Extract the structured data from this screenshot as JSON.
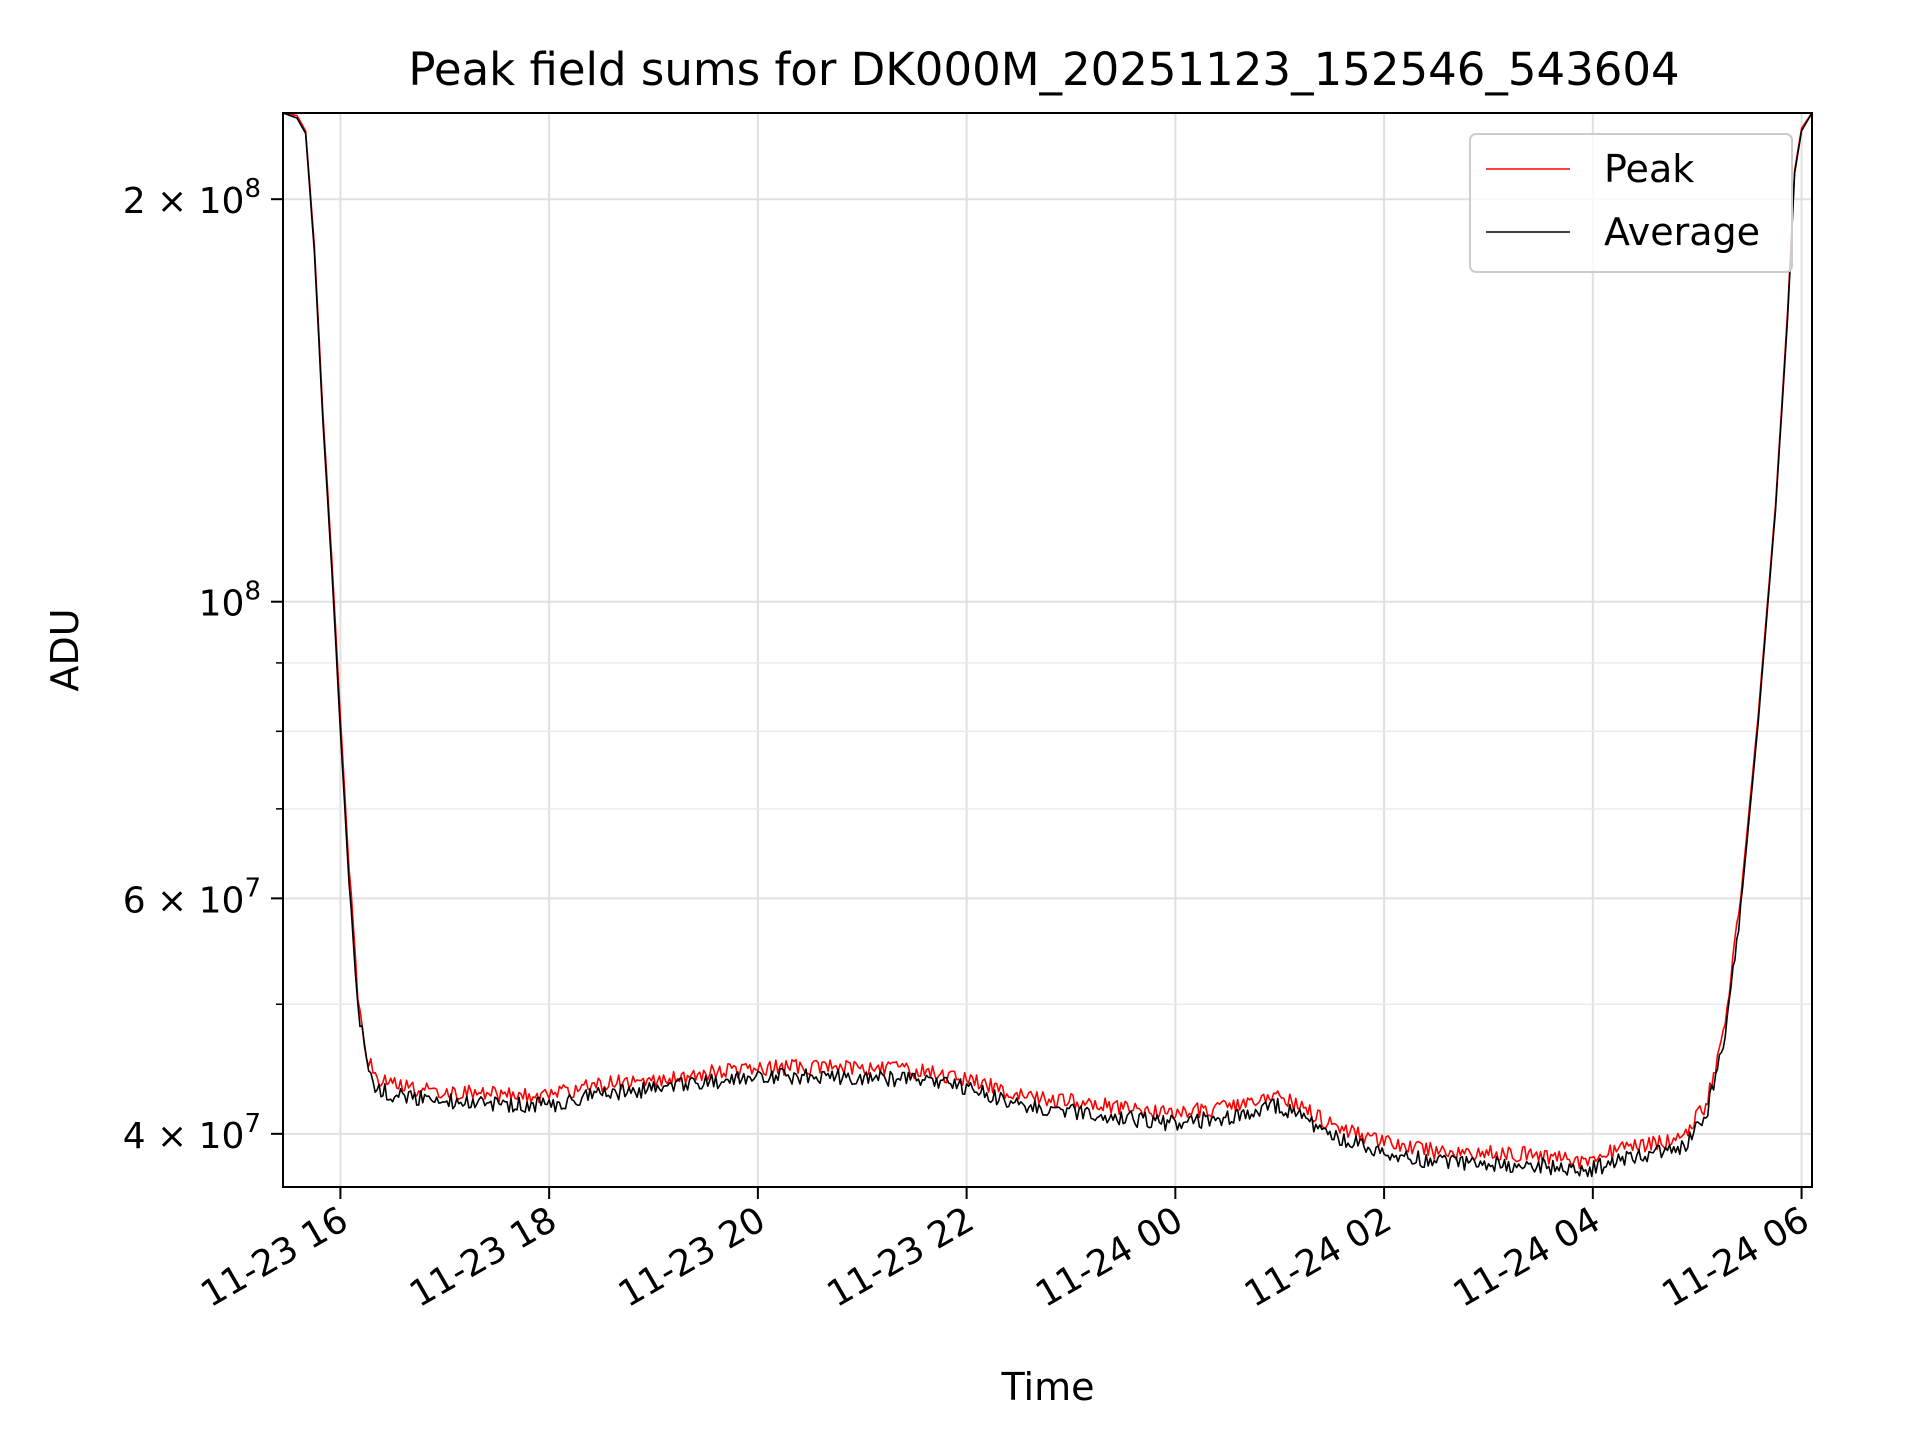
{
  "chart_data": {
    "type": "line",
    "title": "Peak field sums for DK000M_20251123_152546_543604",
    "xlabel": "Time",
    "ylabel": "ADU",
    "yscale": "log",
    "ylim": [
      36500000,
      232000000
    ],
    "xlim": [
      "2025-11-23T15:27",
      "2025-11-24T06:06"
    ],
    "x_ticks": [
      {
        "x": "2025-11-23T16:00",
        "label": "11-23 16"
      },
      {
        "x": "2025-11-23T18:00",
        "label": "11-23 18"
      },
      {
        "x": "2025-11-23T20:00",
        "label": "11-23 20"
      },
      {
        "x": "2025-11-23T22:00",
        "label": "11-23 22"
      },
      {
        "x": "2025-11-24T00:00",
        "label": "11-24 00"
      },
      {
        "x": "2025-11-24T02:00",
        "label": "11-24 02"
      },
      {
        "x": "2025-11-24T04:00",
        "label": "11-24 04"
      },
      {
        "x": "2025-11-24T06:00",
        "label": "11-24 06"
      }
    ],
    "y_major_ticks": [
      {
        "value": 40000000,
        "base": "4",
        "exp": "7"
      },
      {
        "value": 60000000,
        "base": "6",
        "exp": "7"
      },
      {
        "value": 100000000,
        "base": "",
        "exp": "8"
      },
      {
        "value": 200000000,
        "base": "2",
        "exp": "8"
      }
    ],
    "y_minor_ticks": [
      50000000,
      70000000,
      80000000,
      90000000
    ],
    "grid": true,
    "legend_position": "top-right",
    "series": [
      {
        "name": "Peak",
        "color": "#ff0000",
        "x": [
          "2025-11-23T15:27",
          "2025-11-23T15:35",
          "2025-11-23T15:40",
          "2025-11-23T15:45",
          "2025-11-23T15:50",
          "2025-11-23T15:55",
          "2025-11-23T16:00",
          "2025-11-23T16:05",
          "2025-11-23T16:10",
          "2025-11-23T16:15",
          "2025-11-23T16:20",
          "2025-11-23T16:30",
          "2025-11-23T16:45",
          "2025-11-23T17:00",
          "2025-11-23T17:30",
          "2025-11-23T18:00",
          "2025-11-23T18:20",
          "2025-11-23T18:40",
          "2025-11-23T19:00",
          "2025-11-23T19:30",
          "2025-11-23T20:00",
          "2025-11-23T20:30",
          "2025-11-23T21:00",
          "2025-11-23T21:30",
          "2025-11-23T22:00",
          "2025-11-23T22:30",
          "2025-11-23T23:00",
          "2025-11-23T23:30",
          "2025-11-24T00:00",
          "2025-11-24T00:30",
          "2025-11-24T01:00",
          "2025-11-24T01:30",
          "2025-11-24T02:00",
          "2025-11-24T02:30",
          "2025-11-24T03:00",
          "2025-11-24T03:30",
          "2025-11-24T03:50",
          "2025-11-24T04:10",
          "2025-11-24T04:30",
          "2025-11-24T04:50",
          "2025-11-24T05:05",
          "2025-11-24T05:15",
          "2025-11-24T05:25",
          "2025-11-24T05:35",
          "2025-11-24T05:45",
          "2025-11-24T05:52",
          "2025-11-24T05:56",
          "2025-11-24T06:00",
          "2025-11-24T06:06"
        ],
        "values": [
          232000000,
          231000000,
          225000000,
          185000000,
          138000000,
          108000000,
          82000000,
          63000000,
          51000000,
          46000000,
          44000000,
          43500000,
          43200000,
          43000000,
          42800000,
          42700000,
          43300000,
          43700000,
          43900000,
          44400000,
          44800000,
          44900000,
          44800000,
          44600000,
          44000000,
          42700000,
          42300000,
          41800000,
          41400000,
          41900000,
          42700000,
          40600000,
          39400000,
          38800000,
          38700000,
          38600000,
          38100000,
          38700000,
          39300000,
          39500000,
          42000000,
          47500000,
          60000000,
          82000000,
          118000000,
          165000000,
          210000000,
          226000000,
          232000000
        ]
      },
      {
        "name": "Average",
        "color": "#000000",
        "x": [
          "2025-11-23T15:27",
          "2025-11-23T15:35",
          "2025-11-23T15:40",
          "2025-11-23T15:45",
          "2025-11-23T15:50",
          "2025-11-23T15:55",
          "2025-11-23T16:00",
          "2025-11-23T16:05",
          "2025-11-23T16:10",
          "2025-11-23T16:15",
          "2025-11-23T16:20",
          "2025-11-23T16:30",
          "2025-11-23T16:45",
          "2025-11-23T17:00",
          "2025-11-23T17:30",
          "2025-11-23T18:00",
          "2025-11-23T18:20",
          "2025-11-23T18:40",
          "2025-11-23T19:00",
          "2025-11-23T19:30",
          "2025-11-23T20:00",
          "2025-11-23T20:30",
          "2025-11-23T21:00",
          "2025-11-23T21:30",
          "2025-11-23T22:00",
          "2025-11-23T22:30",
          "2025-11-23T23:00",
          "2025-11-23T23:30",
          "2025-11-24T00:00",
          "2025-11-24T00:30",
          "2025-11-24T01:00",
          "2025-11-24T01:30",
          "2025-11-24T02:00",
          "2025-11-24T02:30",
          "2025-11-24T03:00",
          "2025-11-24T03:30",
          "2025-11-24T03:50",
          "2025-11-24T04:10",
          "2025-11-24T04:30",
          "2025-11-24T04:50",
          "2025-11-24T05:05",
          "2025-11-24T05:15",
          "2025-11-24T05:25",
          "2025-11-24T05:35",
          "2025-11-24T05:45",
          "2025-11-24T05:52",
          "2025-11-24T05:56",
          "2025-11-24T06:00",
          "2025-11-24T06:06"
        ],
        "values": [
          232000000,
          230000000,
          224000000,
          183000000,
          136000000,
          106000000,
          80000000,
          61500000,
          50000000,
          45200000,
          43300000,
          42800000,
          42500000,
          42300000,
          42100000,
          42000000,
          42600000,
          43000000,
          43200000,
          43700000,
          44100000,
          44200000,
          44100000,
          43900000,
          43300000,
          42000000,
          41600000,
          41100000,
          40700000,
          41200000,
          42000000,
          39900000,
          38700000,
          38100000,
          38000000,
          37900000,
          37400000,
          38000000,
          38600000,
          38800000,
          41200000,
          46500000,
          59000000,
          81000000,
          117000000,
          163000000,
          209000000,
          225000000,
          232000000
        ]
      }
    ]
  }
}
